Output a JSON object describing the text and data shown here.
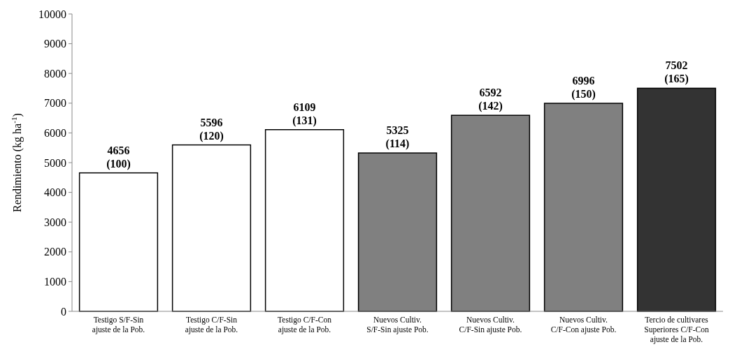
{
  "chart_data": {
    "type": "bar",
    "ylabel": "Rendimiento (kg ha$^{-1}$)",
    "categories": [
      "Testigo S/F-Sin ajuste de la Pob.",
      "Testigo C/F-Sin ajuste de la Pob.",
      "Testigo C/F-Con ajuste de la Pob.",
      "Nuevos Cultiv. S/F-Sin ajuste Pob.",
      "Nuevos Cultiv. C/F-Sin ajuste Pob.",
      "Nuevos Cultiv. C/F-Con ajuste Pob.",
      "Tercio de cultivares Superiores C/F-Con ajuste de la Pob."
    ],
    "values": [
      4656,
      5596,
      6109,
      5325,
      6592,
      6996,
      7502
    ],
    "value_labels": [
      "4656\n(100)",
      "5596\n(120)",
      "6109\n(131)",
      "5325\n(114)",
      "6592\n(142)",
      "6996\n(150)",
      "7502\n(165)"
    ],
    "colors": [
      "#ffffff",
      "#ffffff",
      "#ffffff",
      "#808080",
      "#808080",
      "#808080",
      "#333333"
    ],
    "ylim": [
      0,
      10000
    ],
    "yticks": [
      0,
      1000,
      2000,
      3000,
      4000,
      5000,
      6000,
      7000,
      8000,
      9000,
      10000
    ],
    "grid": false
  }
}
